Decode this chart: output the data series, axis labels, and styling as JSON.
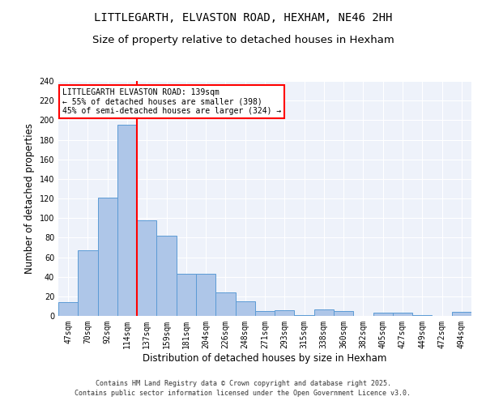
{
  "title1": "LITTLEGARTH, ELVASTON ROAD, HEXHAM, NE46 2HH",
  "title2": "Size of property relative to detached houses in Hexham",
  "xlabel": "Distribution of detached houses by size in Hexham",
  "ylabel": "Number of detached properties",
  "categories": [
    "47sqm",
    "70sqm",
    "92sqm",
    "114sqm",
    "137sqm",
    "159sqm",
    "181sqm",
    "204sqm",
    "226sqm",
    "248sqm",
    "271sqm",
    "293sqm",
    "315sqm",
    "338sqm",
    "360sqm",
    "382sqm",
    "405sqm",
    "427sqm",
    "449sqm",
    "472sqm",
    "494sqm"
  ],
  "values": [
    14,
    67,
    121,
    195,
    98,
    82,
    43,
    43,
    24,
    15,
    5,
    6,
    1,
    7,
    5,
    0,
    3,
    3,
    1,
    0,
    4
  ],
  "bar_color": "#aec6e8",
  "bar_edge_color": "#5b9bd5",
  "vline_color": "red",
  "annotation_text": "LITTLEGARTH ELVASTON ROAD: 139sqm\n← 55% of detached houses are smaller (398)\n45% of semi-detached houses are larger (324) →",
  "annotation_box_color": "white",
  "annotation_box_edge": "red",
  "footer": "Contains HM Land Registry data © Crown copyright and database right 2025.\nContains public sector information licensed under the Open Government Licence v3.0.",
  "ylim": [
    0,
    240
  ],
  "yticks": [
    0,
    20,
    40,
    60,
    80,
    100,
    120,
    140,
    160,
    180,
    200,
    220,
    240
  ],
  "bg_color": "#eef2fa",
  "grid_color": "white",
  "title_fontsize": 10,
  "subtitle_fontsize": 9.5,
  "tick_fontsize": 7,
  "label_fontsize": 8.5,
  "footer_fontsize": 6,
  "annotation_fontsize": 7
}
